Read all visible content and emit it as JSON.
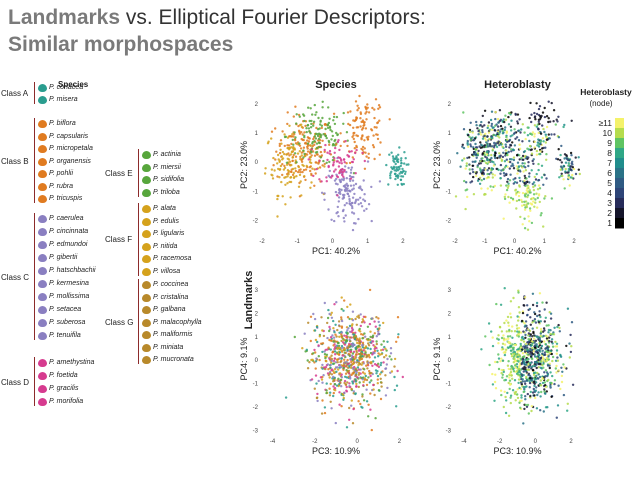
{
  "slide": {
    "title_part1": "Landmarks",
    "title_part2": " vs. Elliptical Fourier Descriptors:",
    "title_part3": "Similar morphospaces"
  },
  "legend": {
    "heading": "Species",
    "classes": [
      {
        "name": "Class A",
        "color": "#2a9d8f",
        "species": [
          "P. coriacea",
          "P. misera"
        ]
      },
      {
        "name": "Class B",
        "color": "#e07b20",
        "species": [
          "P. biflora",
          "P. capsularis",
          "P. micropetala",
          "P. organensis",
          "P. pohlii",
          "P. rubra",
          "P. tricuspis"
        ]
      },
      {
        "name": "Class C",
        "color": "#8a7fc1",
        "species": [
          "P. caerulea",
          "P. cincinnata",
          "P. edmundoi",
          "P. gibertii",
          "P. hatschbachii",
          "P. kermesina",
          "P. mollissima",
          "P. setacea",
          "P. suberosa",
          "P. tenuifila"
        ]
      },
      {
        "name": "Class D",
        "color": "#d63b8f",
        "species": [
          "P. amethystina",
          "P. foetida",
          "P. gracilis",
          "P. morifolia"
        ]
      },
      {
        "name": "Class E",
        "color": "#57a63c",
        "species": [
          "P. actinia",
          "P. miersii",
          "P. sidifolia",
          "P. triloba"
        ]
      },
      {
        "name": "Class F",
        "color": "#d5a21c",
        "species": [
          "P. alata",
          "P. edulis",
          "P. ligularis",
          "P. nitida",
          "P. racemosa",
          "P. villosa"
        ]
      },
      {
        "name": "Class G",
        "color": "#b8892a",
        "species": [
          "P. coccinea",
          "P. cristalina",
          "P. galbana",
          "P. malacophylla",
          "P. maliformis",
          "P. miniata",
          "P. mucronata"
        ]
      }
    ]
  },
  "row_label": "Landmarks",
  "colorbar": {
    "title": "Heteroblasty",
    "subtitle": "(node)",
    "ticks": [
      "≥11",
      "10",
      "9",
      "8",
      "7",
      "6",
      "5",
      "4",
      "3",
      "2",
      "1"
    ],
    "colors": [
      "#f4f26a",
      "#b5dc4d",
      "#5fc462",
      "#2fa786",
      "#218d8c",
      "#2a7287",
      "#2f5a83",
      "#2e4578",
      "#272c5a",
      "#15152a",
      "#000000"
    ]
  },
  "chart_data": [
    {
      "type": "scatter",
      "panel": "top-left",
      "title": "Species",
      "xlabel": "PC1: 40.2%",
      "ylabel": "PC2: 23.0%",
      "xlim": [
        -2,
        2.2
      ],
      "ylim": [
        -2.5,
        2.3
      ],
      "xticks": [
        -2,
        -1,
        0,
        1,
        2
      ],
      "yticks": [
        2,
        1,
        0,
        -1,
        -2
      ],
      "clusters": [
        {
          "series": "Class B",
          "color": "#e07b20",
          "center": [
            -0.8,
            0.4
          ],
          "spread": [
            0.4,
            0.6
          ],
          "n": 170
        },
        {
          "series": "Class F",
          "color": "#d5a21c",
          "center": [
            -1.2,
            0.0
          ],
          "spread": [
            0.35,
            0.55
          ],
          "n": 120
        },
        {
          "series": "Class E",
          "color": "#57a63c",
          "center": [
            -0.4,
            0.9
          ],
          "spread": [
            0.45,
            0.5
          ],
          "n": 120
        },
        {
          "series": "Class B",
          "color": "#e07b20",
          "center": [
            0.9,
            1.1
          ],
          "spread": [
            0.3,
            0.55
          ],
          "n": 110
        },
        {
          "series": "Class C",
          "color": "#8a7fc1",
          "center": [
            0.4,
            -1.1
          ],
          "spread": [
            0.3,
            0.55
          ],
          "n": 130
        },
        {
          "series": "Class D",
          "color": "#d63b8f",
          "center": [
            0.2,
            0.0
          ],
          "spread": [
            0.3,
            0.4
          ],
          "n": 70
        },
        {
          "series": "Class A",
          "color": "#2a9d8f",
          "center": [
            1.8,
            -0.2
          ],
          "spread": [
            0.15,
            0.3
          ],
          "n": 70
        }
      ]
    },
    {
      "type": "scatter",
      "panel": "top-right",
      "title": "Heteroblasty",
      "xlabel": "PC1: 40.2%",
      "ylabel": "PC2: 23.0%",
      "xlim": [
        -2,
        2.2
      ],
      "ylim": [
        -2.5,
        2.3
      ],
      "xticks": [
        -2,
        -1,
        0,
        1,
        2
      ],
      "yticks": [
        2,
        1,
        0,
        -1,
        -2
      ],
      "color_by": "node"
    },
    {
      "type": "scatter",
      "panel": "bottom-left",
      "title": "",
      "xlabel": "PC3: 10.9%",
      "ylabel": "PC4: 9.1%",
      "xlim": [
        -4.5,
        2.5
      ],
      "ylim": [
        -3.2,
        3.3
      ],
      "xticks": [
        -4,
        -2,
        0,
        2
      ],
      "yticks": [
        3,
        2,
        1,
        0,
        -1,
        -2,
        -3
      ],
      "color_by": "species"
    },
    {
      "type": "scatter",
      "panel": "bottom-right",
      "title": "",
      "xlabel": "PC3: 10.9%",
      "ylabel": "PC4: 9.1%",
      "xlim": [
        -4.5,
        2.5
      ],
      "ylim": [
        -3.2,
        3.3
      ],
      "xticks": [
        -4,
        -2,
        0,
        2
      ],
      "yticks": [
        3,
        2,
        1,
        0,
        -1,
        -2,
        -3
      ],
      "color_by": "node"
    }
  ]
}
